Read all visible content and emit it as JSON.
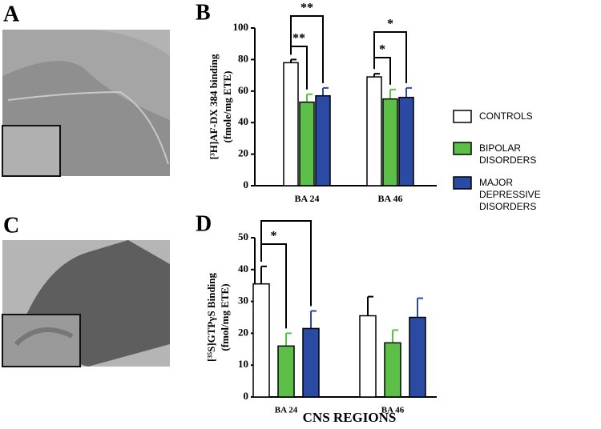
{
  "panels": {
    "a": "A",
    "b": "B",
    "c": "C",
    "d": "D"
  },
  "x_label": "CNS REGIONS",
  "chart_data": [
    {
      "type": "bar",
      "y_label": [
        "[³H]AF-DX 384 binding",
        "(fmole/mg ETE)"
      ],
      "categories": [
        "BA 24",
        "BA 46"
      ],
      "ylim": [
        0,
        100
      ],
      "yticks": [
        0,
        20,
        40,
        60,
        80,
        100
      ],
      "series": [
        {
          "name": "CONTROLS",
          "color": "#ffffff",
          "values": [
            78,
            69
          ],
          "errors": [
            2,
            2
          ]
        },
        {
          "name": "BIPOLAR DISORDERS",
          "color": "#5cbf47",
          "values": [
            53,
            55
          ],
          "errors": [
            5,
            6
          ]
        },
        {
          "name": "MAJOR DEPRESSIVE DISORDERS",
          "color": "#2b4aa3",
          "values": [
            57,
            56
          ],
          "errors": [
            5,
            6
          ]
        }
      ],
      "annotations": [
        "**",
        "**",
        "*",
        "*"
      ]
    },
    {
      "type": "bar",
      "y_label": [
        "[³⁵S]GTPγS Binding",
        "(fmol/mg ETE)"
      ],
      "categories": [
        "BA 24",
        "BA 46"
      ],
      "ylim": [
        0,
        50
      ],
      "yticks": [
        0,
        10,
        20,
        30,
        40,
        50
      ],
      "series": [
        {
          "name": "CONTROLS",
          "color": "#ffffff",
          "values": [
            35.5,
            25.5
          ],
          "errors": [
            5.5,
            6
          ]
        },
        {
          "name": "BIPOLAR DISORDERS",
          "color": "#5cbf47",
          "values": [
            16,
            17
          ],
          "errors": [
            4,
            4
          ]
        },
        {
          "name": "MAJOR DEPRESSIVE DISORDERS",
          "color": "#2b4aa3",
          "values": [
            21.5,
            25
          ],
          "errors": [
            5.5,
            6
          ]
        }
      ],
      "annotations": [
        "*"
      ]
    }
  ]
}
